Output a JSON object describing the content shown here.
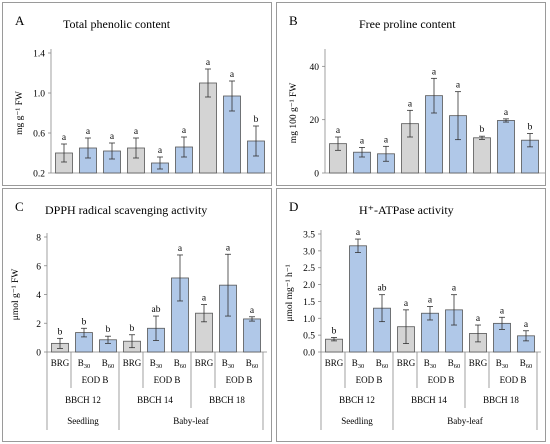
{
  "colors": {
    "brg_bar": "#d4d4d4",
    "eod_bar": "#b0c8e8",
    "bar_stroke": "#555555",
    "panel_border": "#9a9a9a",
    "axis": "#888888"
  },
  "chart_data": [
    {
      "panel": "A",
      "type": "bar",
      "title": "Total phenolic content",
      "ylabel": "mg g⁻¹ FW",
      "ylim": [
        0.2,
        1.4
      ],
      "yticks": [
        0.2,
        0.6,
        1.0,
        1.4
      ],
      "ytick_labels": [
        "0.2",
        "0.6",
        "1.0",
        "1.4"
      ],
      "grid": false,
      "values": [
        0.4,
        0.45,
        0.42,
        0.45,
        0.3,
        0.46,
        1.1,
        0.97,
        0.52
      ],
      "errors": [
        0.09,
        0.1,
        0.08,
        0.1,
        0.06,
        0.1,
        0.14,
        0.15,
        0.15
      ],
      "letters": [
        "a",
        "a",
        "a",
        "a",
        "a",
        "a",
        "a",
        "a",
        "b"
      ],
      "kinds": [
        "brg",
        "eod",
        "eod",
        "brg",
        "eod",
        "eod",
        "brg",
        "eod",
        "eod"
      ]
    },
    {
      "panel": "B",
      "type": "bar",
      "title": "Free proline content",
      "ylabel": "mg 100 g⁻¹ FW",
      "ylim": [
        0,
        45
      ],
      "yticks": [
        0,
        20,
        40
      ],
      "ytick_labels": [
        "0",
        "20",
        "40"
      ],
      "grid": false,
      "values": [
        11,
        7.8,
        7.2,
        18.5,
        29,
        21.5,
        13.2,
        19.7,
        12.3
      ],
      "errors": [
        2.5,
        1.8,
        2.8,
        5.0,
        6.5,
        9.0,
        0.6,
        0.6,
        2.5
      ],
      "letters": [
        "a",
        "a",
        "a",
        "a",
        "a",
        "a",
        "b",
        "a",
        "b"
      ],
      "kinds": [
        "brg",
        "eod",
        "eod",
        "brg",
        "eod",
        "eod",
        "brg",
        "eod",
        "eod"
      ]
    },
    {
      "panel": "C",
      "type": "bar",
      "title": "DPPH radical scavenging activity",
      "ylabel": "μmol g⁻¹ FW",
      "ylim": [
        0,
        8
      ],
      "yticks": [
        0,
        2,
        4,
        6,
        8
      ],
      "ytick_labels": [
        "0",
        "2",
        "4",
        "6",
        "8"
      ],
      "grid": false,
      "values": [
        0.6,
        1.35,
        0.85,
        0.75,
        1.65,
        5.15,
        2.7,
        4.65,
        2.3
      ],
      "errors": [
        0.35,
        0.3,
        0.25,
        0.45,
        0.85,
        1.6,
        0.6,
        2.15,
        0.15
      ],
      "letters": [
        "b",
        "b",
        "b",
        "b",
        "ab",
        "a",
        "a",
        "a",
        "a"
      ],
      "kinds": [
        "brg",
        "eod",
        "eod",
        "brg",
        "eod",
        "eod",
        "brg",
        "eod",
        "eod"
      ],
      "x_tick_labels": [
        "BRG",
        "B30",
        "B60",
        "BRG",
        "B30",
        "B60",
        "BRG",
        "B30",
        "B60"
      ],
      "group_labels": [
        "EOD B",
        "EOD B",
        "EOD B"
      ],
      "stage_labels": [
        "BBCH 12",
        "BBCH 14",
        "BBCH 18"
      ],
      "phase_labels": [
        "Seedling",
        "Baby-leaf"
      ]
    },
    {
      "panel": "D",
      "type": "bar",
      "title": "H⁺-ATPase activity",
      "ylabel": "μmol mg⁻¹ h⁻¹",
      "ylim": [
        0,
        3.5
      ],
      "yticks": [
        0,
        0.5,
        1.0,
        1.5,
        2.0,
        2.5,
        3.0,
        3.5
      ],
      "ytick_labels": [
        "0.0",
        "0.5",
        "1.0",
        "1.5",
        "2.0",
        "2.5",
        "3.0",
        "3.5"
      ],
      "grid": false,
      "values": [
        0.38,
        3.15,
        1.3,
        0.75,
        1.15,
        1.25,
        0.55,
        0.85,
        0.48
      ],
      "errors": [
        0.05,
        0.2,
        0.4,
        0.5,
        0.2,
        0.45,
        0.25,
        0.18,
        0.15
      ],
      "letters": [
        "b",
        "a",
        "ab",
        "a",
        "a",
        "a",
        "a",
        "a",
        "a"
      ],
      "kinds": [
        "brg",
        "eod",
        "eod",
        "brg",
        "eod",
        "eod",
        "brg",
        "eod",
        "eod"
      ],
      "x_tick_labels": [
        "BRG",
        "B30",
        "B60",
        "BRG",
        "B30",
        "B60",
        "BRG",
        "B30",
        "B60"
      ],
      "group_labels": [
        "EOD B",
        "EOD B",
        "EOD B"
      ],
      "stage_labels": [
        "BBCH 12",
        "BBCH 14",
        "BBCH 18"
      ],
      "phase_labels": [
        "Seedling",
        "Baby-leaf"
      ]
    }
  ]
}
